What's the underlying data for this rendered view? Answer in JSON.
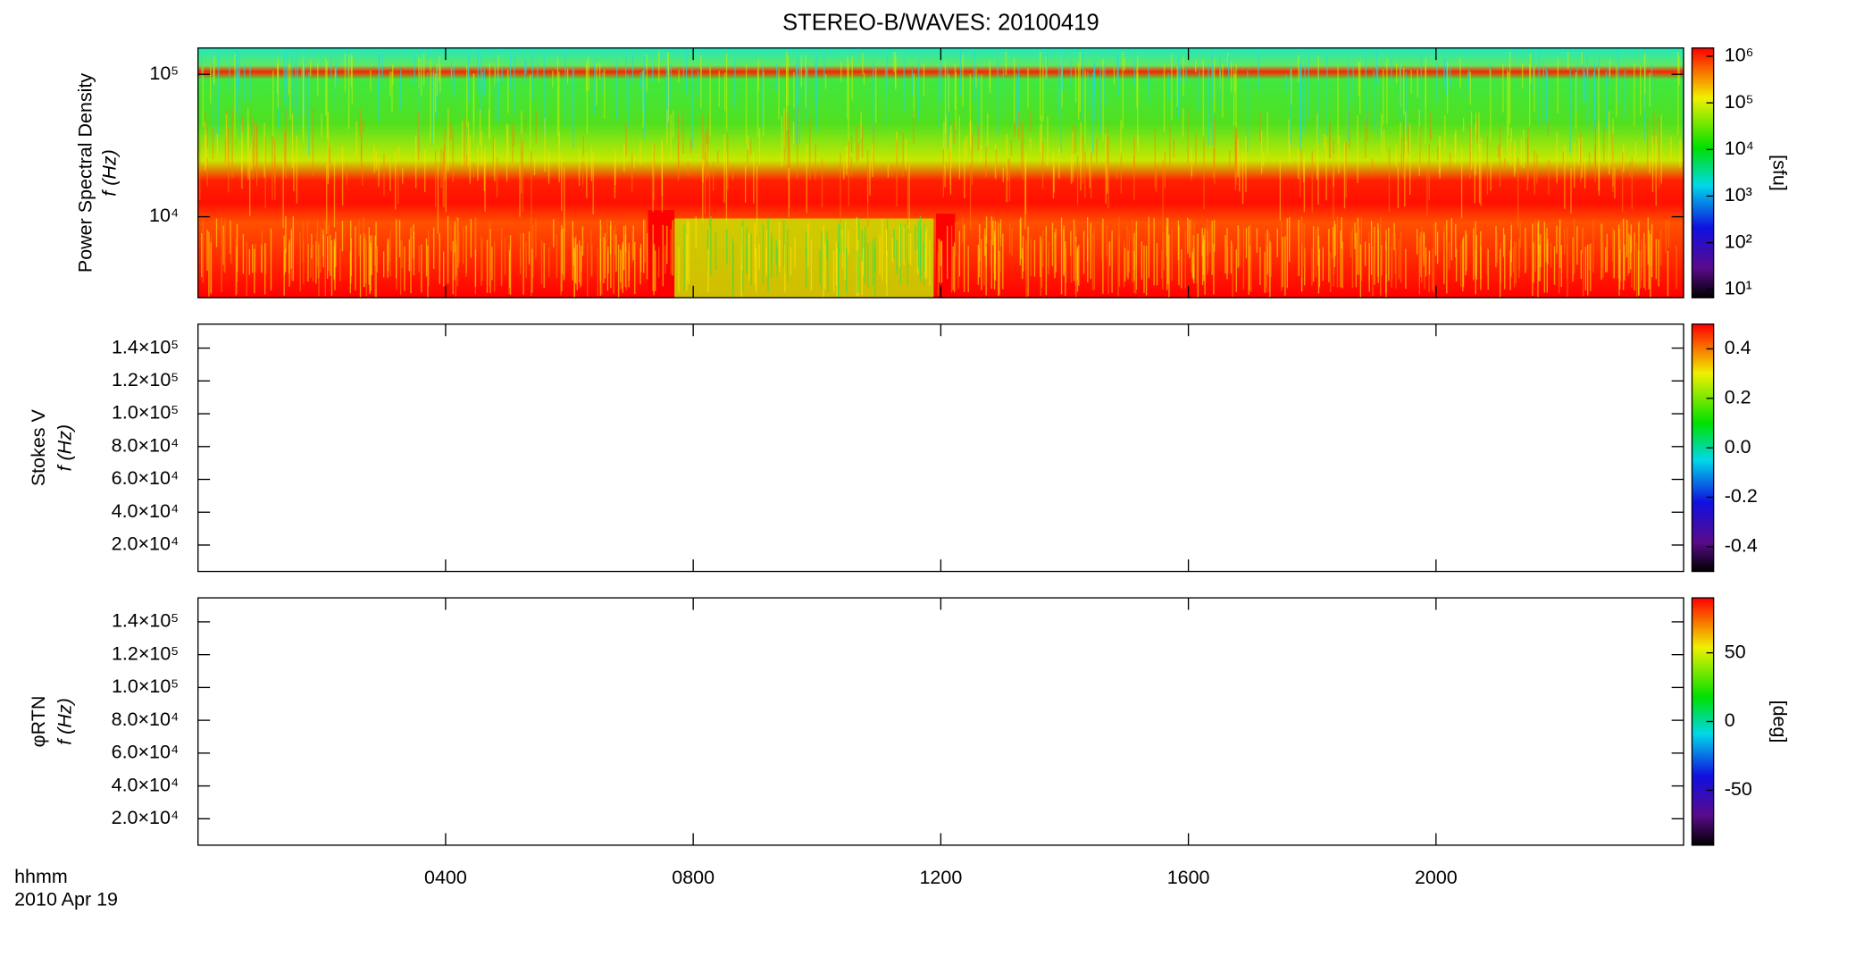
{
  "chart_data": {
    "type": "spectrogram",
    "title": "STEREO-B/WAVES: 20100419",
    "xlim": [
      0,
      24
    ],
    "xticks": [
      {
        "value": 4,
        "label": "0400"
      },
      {
        "value": 8,
        "label": "0800"
      },
      {
        "value": 12,
        "label": "1200"
      },
      {
        "value": 16,
        "label": "1600"
      },
      {
        "value": 20,
        "label": "2000"
      }
    ],
    "x_label": "hhmm",
    "date_label": "2010 Apr 19",
    "panels": [
      {
        "ylabel": "Power Spectral Density",
        "ylabel2": "f (Hz)",
        "ylog": true,
        "ylim": [
          2700,
          153000
        ],
        "yticks": [
          {
            "value": 10000,
            "label": "10⁴"
          },
          {
            "value": 100000,
            "label": "10⁵"
          }
        ],
        "colorbar": {
          "label": "[sfu]",
          "log": true,
          "lim": [
            6.6,
            1500000
          ],
          "ticks": [
            {
              "value": 10,
              "label": "10¹"
            },
            {
              "value": 100,
              "label": "10²"
            },
            {
              "value": 1000,
              "label": "10³"
            },
            {
              "value": 10000,
              "label": "10⁴"
            },
            {
              "value": 100000,
              "label": "10⁵"
            },
            {
              "value": 1000000,
              "label": "10⁶"
            }
          ]
        }
      },
      {
        "ylabel": "Stokes V",
        "ylabel2": "f (Hz)",
        "ylog": false,
        "ylim": [
          3900,
          154600
        ],
        "yticks": [
          {
            "value": 20000,
            "label": "2.0×10⁴"
          },
          {
            "value": 40000,
            "label": "4.0×10⁴"
          },
          {
            "value": 60000,
            "label": "6.0×10⁴"
          },
          {
            "value": 80000,
            "label": "8.0×10⁴"
          },
          {
            "value": 100000,
            "label": "1.0×10⁵"
          },
          {
            "value": 120000,
            "label": "1.2×10⁵"
          },
          {
            "value": 140000,
            "label": "1.4×10⁵"
          }
        ],
        "colorbar": {
          "label": null,
          "log": false,
          "lim": [
            -0.5,
            0.5
          ],
          "ticks": [
            -0.4,
            -0.2,
            {
              "value": 0,
              "label": "0.0"
            },
            0.2,
            0.4
          ]
        }
      },
      {
        "ylabel": "φRTN",
        "ylabel2": "f (Hz)",
        "ylog": false,
        "ylim": [
          3900,
          154600
        ],
        "yticks": [
          {
            "value": 20000,
            "label": "2.0×10⁴"
          },
          {
            "value": 40000,
            "label": "4.0×10⁴"
          },
          {
            "value": 60000,
            "label": "6.0×10⁴"
          },
          {
            "value": 80000,
            "label": "8.0×10⁴"
          },
          {
            "value": 100000,
            "label": "1.0×10⁵"
          },
          {
            "value": 120000,
            "label": "1.2×10⁵"
          },
          {
            "value": 140000,
            "label": "1.4×10⁵"
          }
        ],
        "colorbar": {
          "label": "[deg]",
          "log": false,
          "lim": [
            -90,
            90
          ],
          "ticks": [
            -50,
            0,
            50
          ]
        }
      }
    ]
  }
}
